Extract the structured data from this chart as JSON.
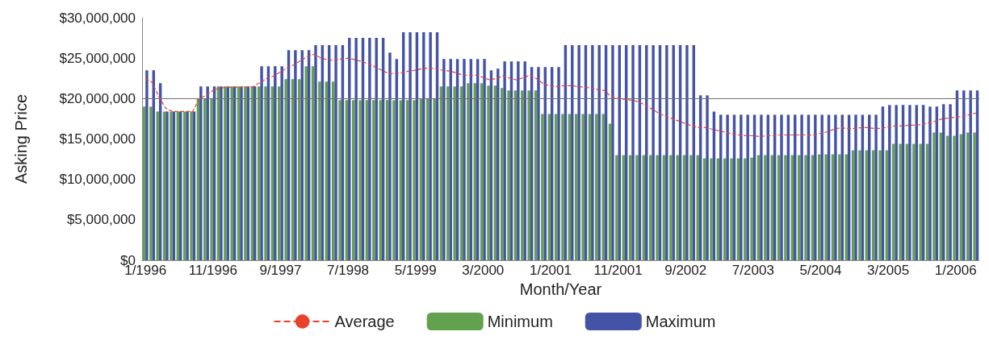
{
  "chart_data": {
    "type": "bar",
    "xlabel": "Month/Year",
    "ylabel": "Asking Price",
    "categories": [
      "1/1996",
      null,
      null,
      null,
      null,
      null,
      null,
      null,
      null,
      null,
      "11/1996",
      null,
      null,
      null,
      null,
      null,
      null,
      null,
      null,
      null,
      "9/1997",
      null,
      null,
      null,
      null,
      null,
      null,
      null,
      null,
      null,
      "7/1998",
      null,
      null,
      null,
      null,
      null,
      null,
      null,
      null,
      null,
      "5/1999",
      null,
      null,
      null,
      null,
      null,
      null,
      null,
      null,
      null,
      "3/2000",
      null,
      null,
      null,
      null,
      null,
      null,
      null,
      null,
      null,
      "1/2001",
      null,
      null,
      null,
      null,
      null,
      null,
      null,
      null,
      null,
      "11/2001",
      null,
      null,
      null,
      null,
      null,
      null,
      null,
      null,
      null,
      "9/2002",
      null,
      null,
      null,
      null,
      null,
      null,
      null,
      null,
      null,
      "7/2003",
      null,
      null,
      null,
      null,
      null,
      null,
      null,
      null,
      null,
      "5/2004",
      null,
      null,
      null,
      null,
      null,
      null,
      null,
      null,
      null,
      "3/2005",
      null,
      null,
      null,
      null,
      null,
      null,
      null,
      null,
      null,
      "1/2006",
      null,
      null,
      null
    ],
    "series": [
      {
        "name": "Average",
        "type": "line",
        "color": "#e8412c",
        "line_style": "dashed",
        "marker": "none",
        "values": [
          22500000,
          22000000,
          20200000,
          18800000,
          18400000,
          18400000,
          18400000,
          18400000,
          20000000,
          20400000,
          21000000,
          21300000,
          21400000,
          21400000,
          21400000,
          21400000,
          21500000,
          22000000,
          22500000,
          22800000,
          23300000,
          23800000,
          24200000,
          24700000,
          25200000,
          25500000,
          25000000,
          24800000,
          24700000,
          24900000,
          25000000,
          24800000,
          24600000,
          24300000,
          23900000,
          23500000,
          23100000,
          23100000,
          23200000,
          23400000,
          23500000,
          23700000,
          23800000,
          23700000,
          23500000,
          23400000,
          23200000,
          22900000,
          22900000,
          22900000,
          22600000,
          22300000,
          22500000,
          22800000,
          22500000,
          22300000,
          22600000,
          22900000,
          22400000,
          21800000,
          21500000,
          21500000,
          21600000,
          21600000,
          21500000,
          21400000,
          21300000,
          21100000,
          21000000,
          20200000,
          20000000,
          19900000,
          19800000,
          19600000,
          19200000,
          18700000,
          18200000,
          17800000,
          17500000,
          17200000,
          16900000,
          16600000,
          16400000,
          16400000,
          16200000,
          16000000,
          15800000,
          15600000,
          15500000,
          15400000,
          15400000,
          15300000,
          15400000,
          15400000,
          15500000,
          15500000,
          15500000,
          15500000,
          15500000,
          15500000,
          15700000,
          15900000,
          16200000,
          16400000,
          16300000,
          16300000,
          16400000,
          16400000,
          16300000,
          16300000,
          16500000,
          16600000,
          16600000,
          16700000,
          16700000,
          16800000,
          17000000,
          17200000,
          17500000,
          17600000,
          17700000,
          17800000,
          18000000,
          18200000
        ]
      },
      {
        "name": "Minimum",
        "color": "#63a14f",
        "values": [
          19000000,
          19000000,
          18400000,
          18400000,
          18400000,
          18400000,
          18400000,
          18400000,
          20000000,
          20000000,
          20000000,
          21500000,
          21500000,
          21500000,
          21500000,
          21500000,
          21500000,
          21500000,
          21500000,
          21500000,
          21500000,
          22400000,
          22400000,
          22400000,
          24000000,
          24000000,
          22100000,
          22100000,
          22100000,
          19800000,
          19800000,
          19800000,
          19800000,
          19800000,
          19800000,
          19800000,
          19800000,
          19800000,
          19800000,
          19800000,
          19800000,
          20000000,
          20000000,
          20000000,
          21500000,
          21500000,
          21500000,
          21500000,
          21900000,
          21900000,
          21900000,
          21600000,
          21600000,
          21300000,
          21000000,
          21000000,
          21000000,
          21000000,
          21000000,
          18100000,
          18100000,
          18100000,
          18100000,
          18100000,
          18100000,
          18100000,
          18100000,
          18100000,
          18100000,
          16900000,
          13000000,
          13000000,
          13000000,
          13000000,
          13000000,
          13000000,
          13000000,
          13000000,
          13000000,
          13000000,
          13000000,
          13000000,
          13000000,
          12600000,
          12600000,
          12600000,
          12600000,
          12600000,
          12600000,
          12600000,
          12700000,
          13000000,
          13000000,
          13000000,
          13000000,
          13000000,
          13000000,
          13000000,
          13000000,
          13000000,
          13100000,
          13100000,
          13100000,
          13100000,
          13100000,
          13600000,
          13600000,
          13600000,
          13600000,
          13600000,
          13600000,
          14400000,
          14400000,
          14400000,
          14400000,
          14400000,
          14400000,
          15800000,
          15800000,
          15400000,
          15400000,
          15600000,
          15800000,
          15800000
        ]
      },
      {
        "name": "Maximum",
        "color": "#4553a6",
        "values": [
          23500000,
          23500000,
          21900000,
          18400000,
          18400000,
          18400000,
          18400000,
          18400000,
          21500000,
          21500000,
          21500000,
          21500000,
          21500000,
          21500000,
          21500000,
          21500000,
          21500000,
          24000000,
          24000000,
          24000000,
          24000000,
          26000000,
          26000000,
          26000000,
          26000000,
          26600000,
          26600000,
          26600000,
          26600000,
          26600000,
          27500000,
          27500000,
          27500000,
          27500000,
          27500000,
          27500000,
          25700000,
          24900000,
          28200000,
          28200000,
          28200000,
          28200000,
          28200000,
          28200000,
          24900000,
          24900000,
          24900000,
          24900000,
          24900000,
          24900000,
          24900000,
          23500000,
          23700000,
          24600000,
          24600000,
          24600000,
          24600000,
          23900000,
          23900000,
          23900000,
          23900000,
          23900000,
          26600000,
          26600000,
          26600000,
          26600000,
          26600000,
          26600000,
          26600000,
          26600000,
          26600000,
          26600000,
          26600000,
          26600000,
          26600000,
          26600000,
          26600000,
          26600000,
          26600000,
          26600000,
          26600000,
          26600000,
          20400000,
          20400000,
          18400000,
          18000000,
          18000000,
          18000000,
          18000000,
          18000000,
          18000000,
          18000000,
          18000000,
          18000000,
          18000000,
          18000000,
          18000000,
          18000000,
          18000000,
          18000000,
          18000000,
          18000000,
          18000000,
          18000000,
          18000000,
          18000000,
          18000000,
          18000000,
          18000000,
          19000000,
          19200000,
          19200000,
          19200000,
          19200000,
          19200000,
          19200000,
          19000000,
          19000000,
          19300000,
          19300000,
          21000000,
          21000000,
          21000000,
          21000000
        ]
      }
    ],
    "ylim": [
      0,
      30000000
    ],
    "yticks": [
      {
        "value": 0,
        "label": "$0"
      },
      {
        "value": 5000000,
        "label": "$5,000,000"
      },
      {
        "value": 10000000,
        "label": "$10,000,000"
      },
      {
        "value": 15000000,
        "label": "$15,000,000"
      },
      {
        "value": 20000000,
        "label": "$20,000,000"
      },
      {
        "value": 25000000,
        "label": "$25,000,000"
      },
      {
        "value": 30000000,
        "label": "$30,000,000"
      }
    ],
    "ref_lines": [
      {
        "axis": "y",
        "value": 20000000,
        "color": "#707070"
      }
    ],
    "grid": false,
    "legend": "bottom"
  }
}
